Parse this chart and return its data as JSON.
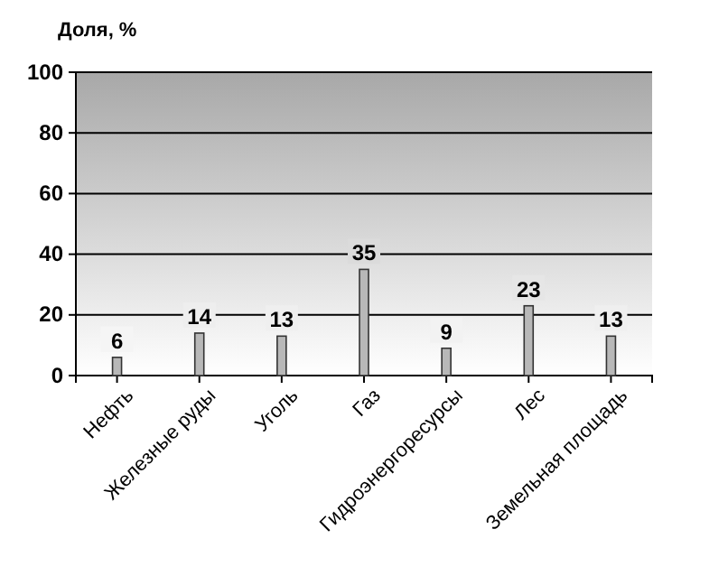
{
  "chart_data": {
    "type": "bar",
    "ylabel": "Доля, %",
    "categories": [
      "Нефть",
      "Железные руды",
      "Уголь",
      "Газ",
      "Гидроэнергоресурсы",
      "Лес",
      "Земельная площадь"
    ],
    "values": [
      6,
      14,
      13,
      35,
      9,
      23,
      13
    ],
    "color": "#b8b8b8",
    "ylim": [
      0,
      100
    ],
    "yticks": [
      0,
      20,
      40,
      60,
      80,
      100
    ],
    "grid": "y",
    "data_labels": true
  }
}
